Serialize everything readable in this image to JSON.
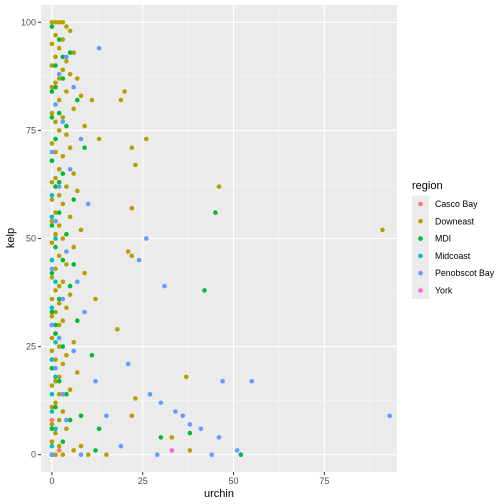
{
  "chart_data": {
    "type": "scatter",
    "xlabel": "urchin",
    "ylabel": "kelp",
    "xlim": [
      -3,
      95
    ],
    "ylim": [
      -4,
      104
    ],
    "x_ticks": [
      0,
      25,
      50,
      75
    ],
    "y_ticks": [
      0,
      25,
      50,
      75,
      100
    ],
    "x_tick_labels": [
      "0",
      "25",
      "50",
      "75"
    ],
    "y_tick_labels": [
      "0",
      "25",
      "50",
      "75",
      "100"
    ],
    "grid": true,
    "legend": {
      "title": "region",
      "placement": "right",
      "entries": [
        "Casco Bay",
        "Downeast",
        "MDI",
        "Midcoast",
        "Penobscot Bay",
        "York"
      ]
    },
    "colors": {
      "Casco Bay": "#F8766D",
      "Downeast": "#B79F00",
      "MDI": "#00BA38",
      "Midcoast": "#00BFC4",
      "Penobscot Bay": "#619CFF",
      "York": "#F564E3",
      "panel_background": "#EBEBEB",
      "grid_major": "#FFFFFF"
    },
    "series": [
      {
        "name": "Casco Bay",
        "points": [
          [
            0,
            0
          ],
          [
            0,
            3
          ],
          [
            1,
            0
          ],
          [
            0,
            8
          ],
          [
            2,
            1
          ]
        ]
      },
      {
        "name": "Downeast",
        "points": [
          [
            0,
            100
          ],
          [
            1,
            100
          ],
          [
            2,
            100
          ],
          [
            3,
            100
          ],
          [
            4,
            99
          ],
          [
            5,
            98
          ],
          [
            1,
            97
          ],
          [
            3,
            96
          ],
          [
            0,
            95
          ],
          [
            2,
            94
          ],
          [
            6,
            93
          ],
          [
            1,
            92
          ],
          [
            4,
            91
          ],
          [
            0,
            90
          ],
          [
            3,
            89
          ],
          [
            5,
            88
          ],
          [
            2,
            87
          ],
          [
            7,
            87
          ],
          [
            1,
            86
          ],
          [
            0,
            85
          ],
          [
            4,
            84
          ],
          [
            8,
            83
          ],
          [
            2,
            82
          ],
          [
            20,
            84
          ],
          [
            19,
            82
          ],
          [
            11,
            82
          ],
          [
            6,
            80
          ],
          [
            0,
            79
          ],
          [
            3,
            78
          ],
          [
            1,
            77
          ],
          [
            9,
            76
          ],
          [
            26,
            73
          ],
          [
            2,
            75
          ],
          [
            4,
            74
          ],
          [
            13,
            73
          ],
          [
            0,
            72
          ],
          [
            5,
            71
          ],
          [
            22,
            71
          ],
          [
            1,
            70
          ],
          [
            3,
            69
          ],
          [
            23,
            67
          ],
          [
            0,
            68
          ],
          [
            2,
            66
          ],
          [
            6,
            65
          ],
          [
            1,
            64
          ],
          [
            0,
            63
          ],
          [
            4,
            62
          ],
          [
            46,
            62
          ],
          [
            7,
            61
          ],
          [
            2,
            60
          ],
          [
            0,
            59
          ],
          [
            3,
            58
          ],
          [
            22,
            57
          ],
          [
            1,
            56
          ],
          [
            5,
            55
          ],
          [
            0,
            54
          ],
          [
            2,
            53
          ],
          [
            8,
            52
          ],
          [
            91,
            52
          ],
          [
            1,
            51
          ],
          [
            3,
            50
          ],
          [
            0,
            49
          ],
          [
            6,
            48
          ],
          [
            21,
            47
          ],
          [
            22,
            46
          ],
          [
            2,
            46
          ],
          [
            0,
            45
          ],
          [
            4,
            44
          ],
          [
            1,
            43
          ],
          [
            9,
            42
          ],
          [
            0,
            41
          ],
          [
            3,
            40
          ],
          [
            2,
            39
          ],
          [
            1,
            38
          ],
          [
            5,
            37
          ],
          [
            0,
            36
          ],
          [
            12,
            36
          ],
          [
            2,
            35
          ],
          [
            4,
            34
          ],
          [
            1,
            33
          ],
          [
            18,
            29
          ],
          [
            0,
            32
          ],
          [
            3,
            31
          ],
          [
            2,
            30
          ],
          [
            1,
            28
          ],
          [
            0,
            27
          ],
          [
            6,
            26
          ],
          [
            2,
            25
          ],
          [
            0,
            24
          ],
          [
            4,
            23
          ],
          [
            1,
            22
          ],
          [
            3,
            21
          ],
          [
            0,
            20
          ],
          [
            7,
            19
          ],
          [
            2,
            18
          ],
          [
            37,
            18
          ],
          [
            1,
            17
          ],
          [
            0,
            16
          ],
          [
            5,
            15
          ],
          [
            2,
            14
          ],
          [
            23,
            13
          ],
          [
            1,
            12
          ],
          [
            0,
            11
          ],
          [
            3,
            10
          ],
          [
            22,
            9
          ],
          [
            2,
            8
          ],
          [
            0,
            7
          ],
          [
            4,
            6
          ],
          [
            1,
            5
          ],
          [
            33,
            4
          ],
          [
            0,
            3
          ],
          [
            2,
            2
          ],
          [
            6,
            1
          ],
          [
            1,
            0
          ],
          [
            38,
            1
          ],
          [
            10,
            0
          ],
          [
            15,
            0
          ],
          [
            0,
            0
          ],
          [
            3,
            0
          ],
          [
            8,
            2
          ]
        ]
      },
      {
        "name": "MDI",
        "points": [
          [
            0,
            99
          ],
          [
            2,
            96
          ],
          [
            5,
            93
          ],
          [
            1,
            90
          ],
          [
            3,
            87
          ],
          [
            0,
            84
          ],
          [
            7,
            82
          ],
          [
            2,
            79
          ],
          [
            4,
            76
          ],
          [
            1,
            73
          ],
          [
            9,
            71
          ],
          [
            0,
            68
          ],
          [
            3,
            65
          ],
          [
            1,
            62
          ],
          [
            6,
            59
          ],
          [
            45,
            56
          ],
          [
            2,
            56
          ],
          [
            0,
            53
          ],
          [
            4,
            51
          ],
          [
            1,
            48
          ],
          [
            3,
            45
          ],
          [
            0,
            42
          ],
          [
            42,
            38
          ],
          [
            5,
            39
          ],
          [
            2,
            36
          ],
          [
            0,
            33
          ],
          [
            7,
            31
          ],
          [
            1,
            28
          ],
          [
            3,
            25
          ],
          [
            11,
            23
          ],
          [
            0,
            20
          ],
          [
            2,
            17
          ],
          [
            4,
            14
          ],
          [
            1,
            11
          ],
          [
            8,
            9
          ],
          [
            0,
            6
          ],
          [
            3,
            3
          ],
          [
            12,
            1
          ],
          [
            0,
            0
          ],
          [
            52,
            0
          ],
          [
            30,
            4
          ],
          [
            38,
            5
          ],
          [
            13,
            6
          ],
          [
            5,
            8
          ],
          [
            1,
            30
          ],
          [
            6,
            44
          ],
          [
            2,
            63
          ],
          [
            0,
            78
          ],
          [
            3,
            92
          ],
          [
            1,
            85
          ]
        ]
      },
      {
        "name": "Midcoast",
        "points": [
          [
            0,
            34
          ],
          [
            0,
            30
          ],
          [
            1,
            26
          ],
          [
            0,
            22
          ],
          [
            1,
            18
          ],
          [
            0,
            14
          ],
          [
            0,
            10
          ],
          [
            1,
            6
          ],
          [
            0,
            2
          ],
          [
            0,
            0
          ],
          [
            1,
            40
          ],
          [
            0,
            45
          ],
          [
            1,
            50
          ],
          [
            0,
            55
          ],
          [
            0,
            60
          ]
        ]
      },
      {
        "name": "Penobscot Bay",
        "points": [
          [
            13,
            94
          ],
          [
            4,
            92
          ],
          [
            2,
            88
          ],
          [
            6,
            85
          ],
          [
            1,
            81
          ],
          [
            3,
            77
          ],
          [
            8,
            73
          ],
          [
            0,
            70
          ],
          [
            5,
            66
          ],
          [
            2,
            62
          ],
          [
            10,
            58
          ],
          [
            1,
            54
          ],
          [
            26,
            50
          ],
          [
            4,
            47
          ],
          [
            0,
            43
          ],
          [
            7,
            40
          ],
          [
            24,
            45
          ],
          [
            31,
            39
          ],
          [
            3,
            36
          ],
          [
            9,
            33
          ],
          [
            0,
            30
          ],
          [
            2,
            27
          ],
          [
            21,
            21
          ],
          [
            55,
            17
          ],
          [
            93,
            9
          ],
          [
            47,
            17
          ],
          [
            6,
            24
          ],
          [
            1,
            20
          ],
          [
            12,
            17
          ],
          [
            3,
            14
          ],
          [
            30,
            12
          ],
          [
            36,
            9
          ],
          [
            41,
            6
          ],
          [
            46,
            4
          ],
          [
            51,
            1
          ],
          [
            44,
            0
          ],
          [
            29,
            0
          ],
          [
            19,
            2
          ],
          [
            8,
            0
          ],
          [
            0,
            0
          ],
          [
            15,
            9
          ],
          [
            4,
            8
          ],
          [
            27,
            14
          ],
          [
            34,
            10
          ],
          [
            38,
            7
          ]
        ]
      },
      {
        "name": "York",
        "points": [
          [
            33,
            1
          ]
        ]
      }
    ]
  }
}
